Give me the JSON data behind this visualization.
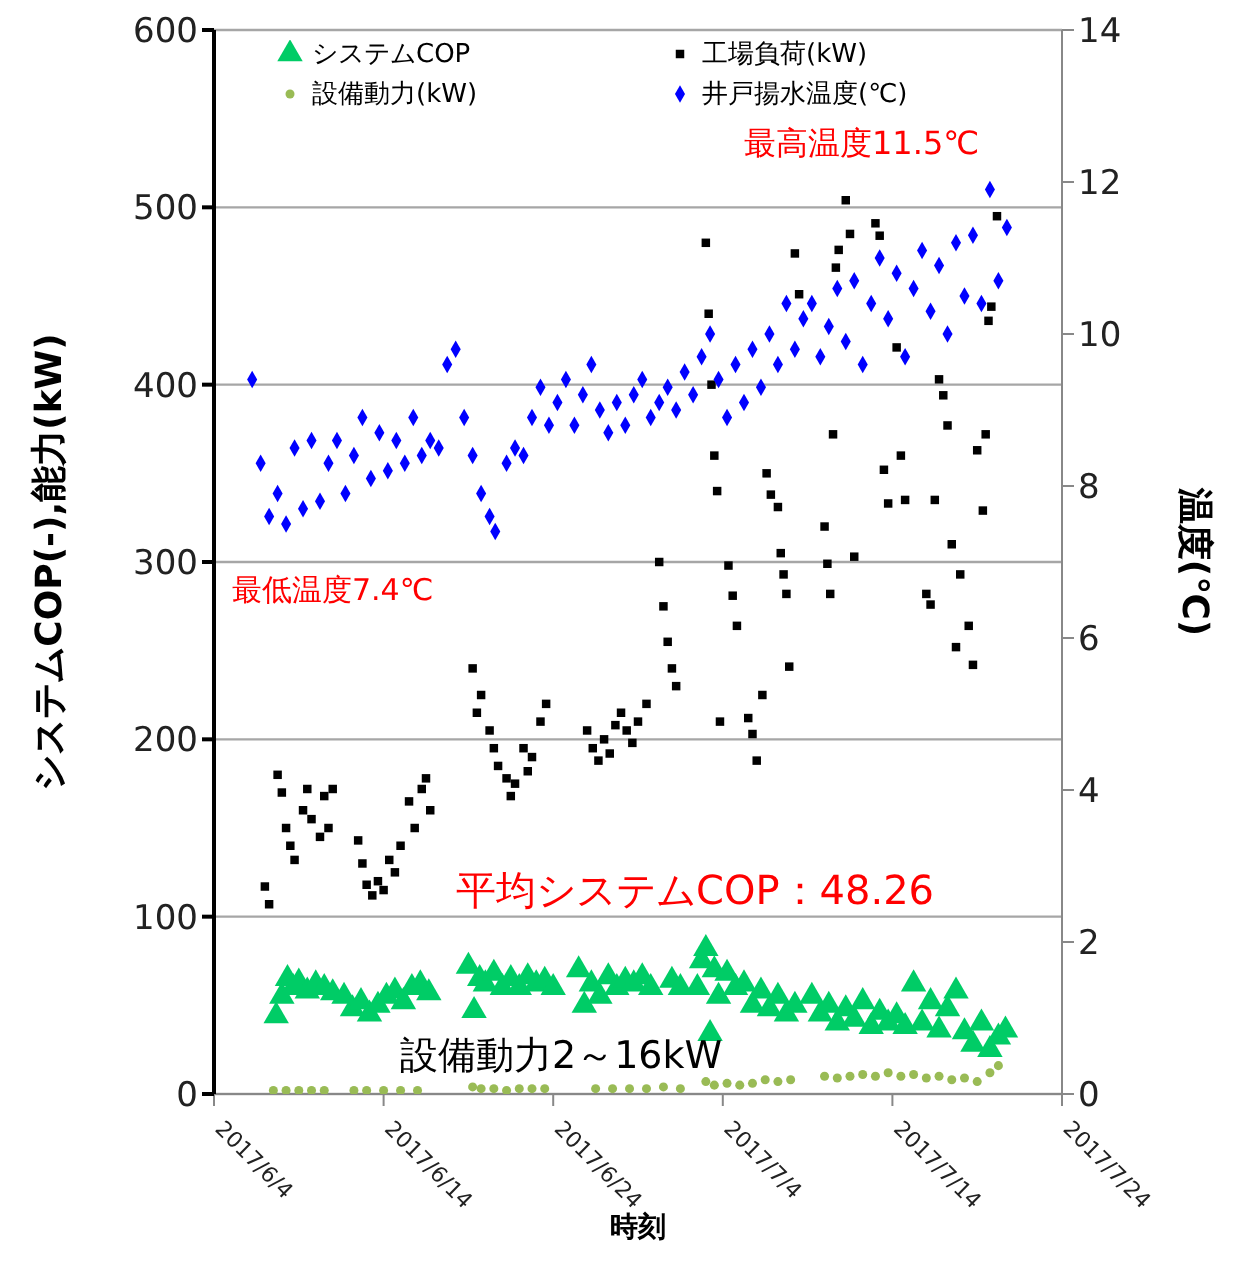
{
  "chart_data": {
    "type": "scatter",
    "xlabel": "時刻",
    "ylabel": "システムCOP(-),能力(kW)",
    "y2label": "温度(℃)",
    "xlim": [
      "2017-06-04",
      "2017-07-24"
    ],
    "xticks": [
      {
        "value": "2017-06-04",
        "label": "2017/6/4"
      },
      {
        "value": "2017-06-14",
        "label": "2017/6/14"
      },
      {
        "value": "2017-06-24",
        "label": "2017/6/24"
      },
      {
        "value": "2017-07-04",
        "label": "2017/7/4"
      },
      {
        "value": "2017-07-14",
        "label": "2017/7/14"
      },
      {
        "value": "2017-07-24",
        "label": "2017/7/24"
      }
    ],
    "ylim": [
      0,
      600
    ],
    "yticks": [
      0,
      100,
      200,
      300,
      400,
      500,
      600
    ],
    "y2lim": [
      0,
      14
    ],
    "y2ticks": [
      0,
      2,
      4,
      6,
      8,
      10,
      12,
      14
    ],
    "grid": "y",
    "legend": "top",
    "annotations": [
      "最高温度11.5℃",
      "最低温度7.4℃",
      "平均システムCOP：48.26",
      "設備動力2～16kW"
    ],
    "series": [
      {
        "name": "システムCOP",
        "color": "#00cc66",
        "marker": "triangle",
        "x": [
          "2017-06-07T16:00",
          "2017-06-08T00:00",
          "2017-06-08T08:00",
          "2017-06-08T16:00",
          "2017-06-09T00:00",
          "2017-06-09T12:00",
          "2017-06-10T00:00",
          "2017-06-10T12:00",
          "2017-06-11T00:00",
          "2017-06-11T16:00",
          "2017-06-12T04:00",
          "2017-06-12T16:00",
          "2017-06-13T04:00",
          "2017-06-13T16:00",
          "2017-06-14T04:00",
          "2017-06-14T16:00",
          "2017-06-15T04:00",
          "2017-06-15T16:00",
          "2017-06-16T04:00",
          "2017-06-16T16:00",
          "2017-06-19T00:00",
          "2017-06-19T08:00",
          "2017-06-19T16:00",
          "2017-06-20T00:00",
          "2017-06-20T12:00",
          "2017-06-21T00:00",
          "2017-06-21T12:00",
          "2017-06-22T00:00",
          "2017-06-22T12:00",
          "2017-06-23T00:00",
          "2017-06-23T12:00",
          "2017-06-24T00:00",
          "2017-06-25T12:00",
          "2017-06-25T20:00",
          "2017-06-26T06:00",
          "2017-06-26T18:00",
          "2017-06-27T06:00",
          "2017-06-27T18:00",
          "2017-06-28T06:00",
          "2017-06-28T18:00",
          "2017-06-29T06:00",
          "2017-06-29T18:00",
          "2017-07-01T00:00",
          "2017-07-01T12:00",
          "2017-07-02T12:00",
          "2017-07-02T18:00",
          "2017-07-03T00:00",
          "2017-07-03T06:00",
          "2017-07-03T12:00",
          "2017-07-03T18:00",
          "2017-07-04T06:00",
          "2017-07-04T18:00",
          "2017-07-05T06:00",
          "2017-07-05T18:00",
          "2017-07-06T06:00",
          "2017-07-06T18:00",
          "2017-07-07T06:00",
          "2017-07-07T18:00",
          "2017-07-08T06:00",
          "2017-07-09T06:00",
          "2017-07-09T18:00",
          "2017-07-10T06:00",
          "2017-07-10T18:00",
          "2017-07-11T06:00",
          "2017-07-11T18:00",
          "2017-07-12T06:00",
          "2017-07-12T18:00",
          "2017-07-13T06:00",
          "2017-07-13T18:00",
          "2017-07-14T06:00",
          "2017-07-14T18:00",
          "2017-07-15T06:00",
          "2017-07-15T18:00",
          "2017-07-16T06:00",
          "2017-07-16T18:00",
          "2017-07-17T06:00",
          "2017-07-17T18:00",
          "2017-07-18T06:00",
          "2017-07-18T18:00",
          "2017-07-19T06:00",
          "2017-07-19T18:00",
          "2017-07-20T06:00",
          "2017-07-20T16:00"
        ],
        "values": [
          44,
          55,
          65,
          60,
          63,
          58,
          62,
          60,
          57,
          55,
          48,
          52,
          45,
          50,
          55,
          58,
          52,
          60,
          62,
          57,
          72,
          47,
          65,
          62,
          68,
          60,
          65,
          60,
          66,
          62,
          64,
          60,
          70,
          50,
          62,
          55,
          66,
          60,
          64,
          62,
          66,
          60,
          64,
          60,
          60,
          75,
          82,
          34,
          70,
          55,
          68,
          60,
          62,
          50,
          58,
          48,
          55,
          45,
          50,
          55,
          45,
          50,
          40,
          48,
          42,
          52,
          38,
          46,
          40,
          44,
          38,
          62,
          40,
          52,
          36,
          48,
          58,
          35,
          28,
          40,
          25,
          32,
          36
        ]
      },
      {
        "name": "工場負荷(kW)",
        "color": "#000000",
        "marker": "square",
        "x": [
          "2017-06-07T00:00",
          "2017-06-07T06:00",
          "2017-06-07T18:00",
          "2017-06-08T00:00",
          "2017-06-08T06:00",
          "2017-06-08T12:00",
          "2017-06-08T18:00",
          "2017-06-09T06:00",
          "2017-06-09T12:00",
          "2017-06-09T18:00",
          "2017-06-10T06:00",
          "2017-06-10T12:00",
          "2017-06-10T18:00",
          "2017-06-11T00:00",
          "2017-06-12T12:00",
          "2017-06-12T18:00",
          "2017-06-13T00:00",
          "2017-06-13T08:00",
          "2017-06-13T16:00",
          "2017-06-14T00:00",
          "2017-06-14T08:00",
          "2017-06-14T16:00",
          "2017-06-15T00:00",
          "2017-06-15T12:00",
          "2017-06-15T20:00",
          "2017-06-16T06:00",
          "2017-06-16T12:00",
          "2017-06-16T18:00",
          "2017-06-19T06:00",
          "2017-06-19T12:00",
          "2017-06-19T18:00",
          "2017-06-20T06:00",
          "2017-06-20T12:00",
          "2017-06-20T18:00",
          "2017-06-21T06:00",
          "2017-06-21T12:00",
          "2017-06-21T18:00",
          "2017-06-22T06:00",
          "2017-06-22T12:00",
          "2017-06-22T18:00",
          "2017-06-23T06:00",
          "2017-06-23T14:00",
          "2017-06-26T00:00",
          "2017-06-26T08:00",
          "2017-06-26T16:00",
          "2017-06-27T00:00",
          "2017-06-27T08:00",
          "2017-06-27T16:00",
          "2017-06-28T00:00",
          "2017-06-28T08:00",
          "2017-06-28T16:00",
          "2017-06-29T00:00",
          "2017-06-29T12:00",
          "2017-06-30T06:00",
          "2017-06-30T12:00",
          "2017-06-30T18:00",
          "2017-07-01T00:00",
          "2017-07-01T06:00",
          "2017-07-03T00:00",
          "2017-07-03T04:00",
          "2017-07-03T08:00",
          "2017-07-03T12:00",
          "2017-07-03T16:00",
          "2017-07-03T20:00",
          "2017-07-04T08:00",
          "2017-07-04T14:00",
          "2017-07-04T20:00",
          "2017-07-05T12:00",
          "2017-07-05T18:00",
          "2017-07-06T00:00",
          "2017-07-06T08:00",
          "2017-07-06T14:00",
          "2017-07-06T20:00",
          "2017-07-07T06:00",
          "2017-07-07T10:00",
          "2017-07-07T14:00",
          "2017-07-07T18:00",
          "2017-07-07T22:00",
          "2017-07-08T06:00",
          "2017-07-08T12:00",
          "2017-07-10T00:00",
          "2017-07-10T04:00",
          "2017-07-10T08:00",
          "2017-07-10T12:00",
          "2017-07-10T16:00",
          "2017-07-10T20:00",
          "2017-07-11T06:00",
          "2017-07-11T12:00",
          "2017-07-11T18:00",
          "2017-07-13T00:00",
          "2017-07-13T06:00",
          "2017-07-13T12:00",
          "2017-07-13T18:00",
          "2017-07-14T06:00",
          "2017-07-14T12:00",
          "2017-07-14T18:00",
          "2017-07-16T00:00",
          "2017-07-16T06:00",
          "2017-07-16T12:00",
          "2017-07-16T18:00",
          "2017-07-17T00:00",
          "2017-07-17T06:00",
          "2017-07-17T12:00",
          "2017-07-17T18:00",
          "2017-07-18T00:00",
          "2017-07-18T12:00",
          "2017-07-18T18:00",
          "2017-07-19T00:00",
          "2017-07-19T08:00",
          "2017-07-19T12:00",
          "2017-07-19T16:00",
          "2017-07-19T20:00",
          "2017-07-20T04:00"
        ],
        "values": [
          117,
          107,
          180,
          170,
          150,
          140,
          132,
          160,
          172,
          155,
          145,
          168,
          150,
          172,
          143,
          130,
          118,
          112,
          120,
          115,
          132,
          125,
          140,
          165,
          150,
          172,
          178,
          160,
          240,
          215,
          225,
          205,
          195,
          185,
          178,
          168,
          175,
          195,
          182,
          190,
          210,
          220,
          205,
          195,
          188,
          200,
          192,
          208,
          215,
          205,
          198,
          210,
          220,
          300,
          275,
          255,
          240,
          230,
          480,
          440,
          400,
          360,
          340,
          210,
          298,
          281,
          264,
          212,
          203,
          188,
          225,
          350,
          338,
          331,
          305,
          293,
          282,
          241,
          474,
          451,
          320,
          299,
          282,
          372,
          466,
          476,
          504,
          485,
          303,
          491,
          484,
          352,
          333,
          421,
          360,
          335,
          282,
          276,
          335,
          403,
          394,
          377,
          310,
          252,
          293,
          264,
          242,
          363,
          329,
          372,
          436,
          444,
          495
        ]
      },
      {
        "name": "設備動力(kW)",
        "color": "#99bb55",
        "marker": "circle",
        "x": [
          "2017-06-07T12:00",
          "2017-06-08T06:00",
          "2017-06-09T00:00",
          "2017-06-09T18:00",
          "2017-06-10T12:00",
          "2017-06-12T06:00",
          "2017-06-13T00:00",
          "2017-06-14T00:00",
          "2017-06-15T00:00",
          "2017-06-16T00:00",
          "2017-06-19T06:00",
          "2017-06-19T18:00",
          "2017-06-20T12:00",
          "2017-06-21T06:00",
          "2017-06-22T00:00",
          "2017-06-22T18:00",
          "2017-06-23T12:00",
          "2017-06-26T12:00",
          "2017-06-27T12:00",
          "2017-06-28T12:00",
          "2017-06-29T12:00",
          "2017-06-30T12:00",
          "2017-07-01T12:00",
          "2017-07-03T00:00",
          "2017-07-03T12:00",
          "2017-07-04T06:00",
          "2017-07-05T00:00",
          "2017-07-05T18:00",
          "2017-07-06T12:00",
          "2017-07-07T06:00",
          "2017-07-08T00:00",
          "2017-07-10T00:00",
          "2017-07-10T18:00",
          "2017-07-11T12:00",
          "2017-07-12T06:00",
          "2017-07-13T00:00",
          "2017-07-13T18:00",
          "2017-07-14T12:00",
          "2017-07-15T06:00",
          "2017-07-16T00:00",
          "2017-07-16T18:00",
          "2017-07-17T12:00",
          "2017-07-18T06:00",
          "2017-07-19T00:00",
          "2017-07-19T18:00",
          "2017-07-20T06:00"
        ],
        "values": [
          2,
          2,
          2,
          2,
          2,
          2,
          2,
          2,
          2,
          2,
          4,
          3,
          3,
          2,
          3,
          3,
          3,
          3,
          3,
          3,
          3,
          4,
          3,
          7,
          5,
          6,
          5,
          6,
          8,
          7,
          8,
          10,
          9,
          10,
          11,
          10,
          12,
          10,
          11,
          9,
          10,
          8,
          9,
          7,
          12,
          16
        ]
      },
      {
        "name": "井戸揚水温度(℃)",
        "color": "#0000ff",
        "marker": "diamond",
        "axis": "y2",
        "x": [
          "2017-06-06T06:00",
          "2017-06-06T18:00",
          "2017-06-07T06:00",
          "2017-06-07T18:00",
          "2017-06-08T06:00",
          "2017-06-08T18:00",
          "2017-06-09T06:00",
          "2017-06-09T18:00",
          "2017-06-10T06:00",
          "2017-06-10T18:00",
          "2017-06-11T06:00",
          "2017-06-11T18:00",
          "2017-06-12T06:00",
          "2017-06-12T18:00",
          "2017-06-13T06:00",
          "2017-06-13T18:00",
          "2017-06-14T06:00",
          "2017-06-14T18:00",
          "2017-06-15T06:00",
          "2017-06-15T18:00",
          "2017-06-16T06:00",
          "2017-06-16T18:00",
          "2017-06-17T06:00",
          "2017-06-17T18:00",
          "2017-06-18T06:00",
          "2017-06-18T18:00",
          "2017-06-19T06:00",
          "2017-06-19T18:00",
          "2017-06-20T06:00",
          "2017-06-20T14:00",
          "2017-06-21T06:00",
          "2017-06-21T18:00",
          "2017-06-22T06:00",
          "2017-06-22T18:00",
          "2017-06-23T06:00",
          "2017-06-23T18:00",
          "2017-06-24T06:00",
          "2017-06-24T18:00",
          "2017-06-25T06:00",
          "2017-06-25T18:00",
          "2017-06-26T06:00",
          "2017-06-26T18:00",
          "2017-06-27T06:00",
          "2017-06-27T18:00",
          "2017-06-28T06:00",
          "2017-06-28T18:00",
          "2017-06-29T06:00",
          "2017-06-29T18:00",
          "2017-06-30T06:00",
          "2017-06-30T18:00",
          "2017-07-01T06:00",
          "2017-07-01T18:00",
          "2017-07-02T06:00",
          "2017-07-02T18:00",
          "2017-07-03T06:00",
          "2017-07-03T18:00",
          "2017-07-04T06:00",
          "2017-07-04T18:00",
          "2017-07-05T06:00",
          "2017-07-05T18:00",
          "2017-07-06T06:00",
          "2017-07-06T18:00",
          "2017-07-07T06:00",
          "2017-07-07T18:00",
          "2017-07-08T06:00",
          "2017-07-08T18:00",
          "2017-07-09T06:00",
          "2017-07-09T18:00",
          "2017-07-10T06:00",
          "2017-07-10T18:00",
          "2017-07-11T06:00",
          "2017-07-11T18:00",
          "2017-07-12T06:00",
          "2017-07-12T18:00",
          "2017-07-13T06:00",
          "2017-07-13T18:00",
          "2017-07-14T06:00",
          "2017-07-14T18:00",
          "2017-07-15T06:00",
          "2017-07-15T18:00",
          "2017-07-16T06:00",
          "2017-07-16T18:00",
          "2017-07-17T06:00",
          "2017-07-17T18:00",
          "2017-07-18T06:00",
          "2017-07-18T18:00",
          "2017-07-19T06:00",
          "2017-07-19T18:00",
          "2017-07-20T06:00",
          "2017-07-20T18:00"
        ],
        "values": [
          9.4,
          8.3,
          7.6,
          7.9,
          7.5,
          8.5,
          7.7,
          8.6,
          7.8,
          8.3,
          8.6,
          7.9,
          8.4,
          8.9,
          8.1,
          8.7,
          8.2,
          8.6,
          8.3,
          8.9,
          8.4,
          8.6,
          8.5,
          9.6,
          9.8,
          8.9,
          8.4,
          7.9,
          7.6,
          7.4,
          8.3,
          8.5,
          8.4,
          8.9,
          9.3,
          8.8,
          9.1,
          9.4,
          8.8,
          9.2,
          9.6,
          9.0,
          8.7,
          9.1,
          8.8,
          9.2,
          9.4,
          8.9,
          9.1,
          9.3,
          9.0,
          9.5,
          9.2,
          9.7,
          10.0,
          9.4,
          8.9,
          9.6,
          9.1,
          9.8,
          9.3,
          10.0,
          9.6,
          10.4,
          9.8,
          10.2,
          10.4,
          9.7,
          10.1,
          10.6,
          9.9,
          10.7,
          9.6,
          10.4,
          11.0,
          10.2,
          10.8,
          9.7,
          10.6,
          11.1,
          10.3,
          10.9,
          10.0,
          11.2,
          10.5,
          11.3,
          10.4,
          11.9,
          10.7,
          11.4
        ]
      }
    ]
  }
}
